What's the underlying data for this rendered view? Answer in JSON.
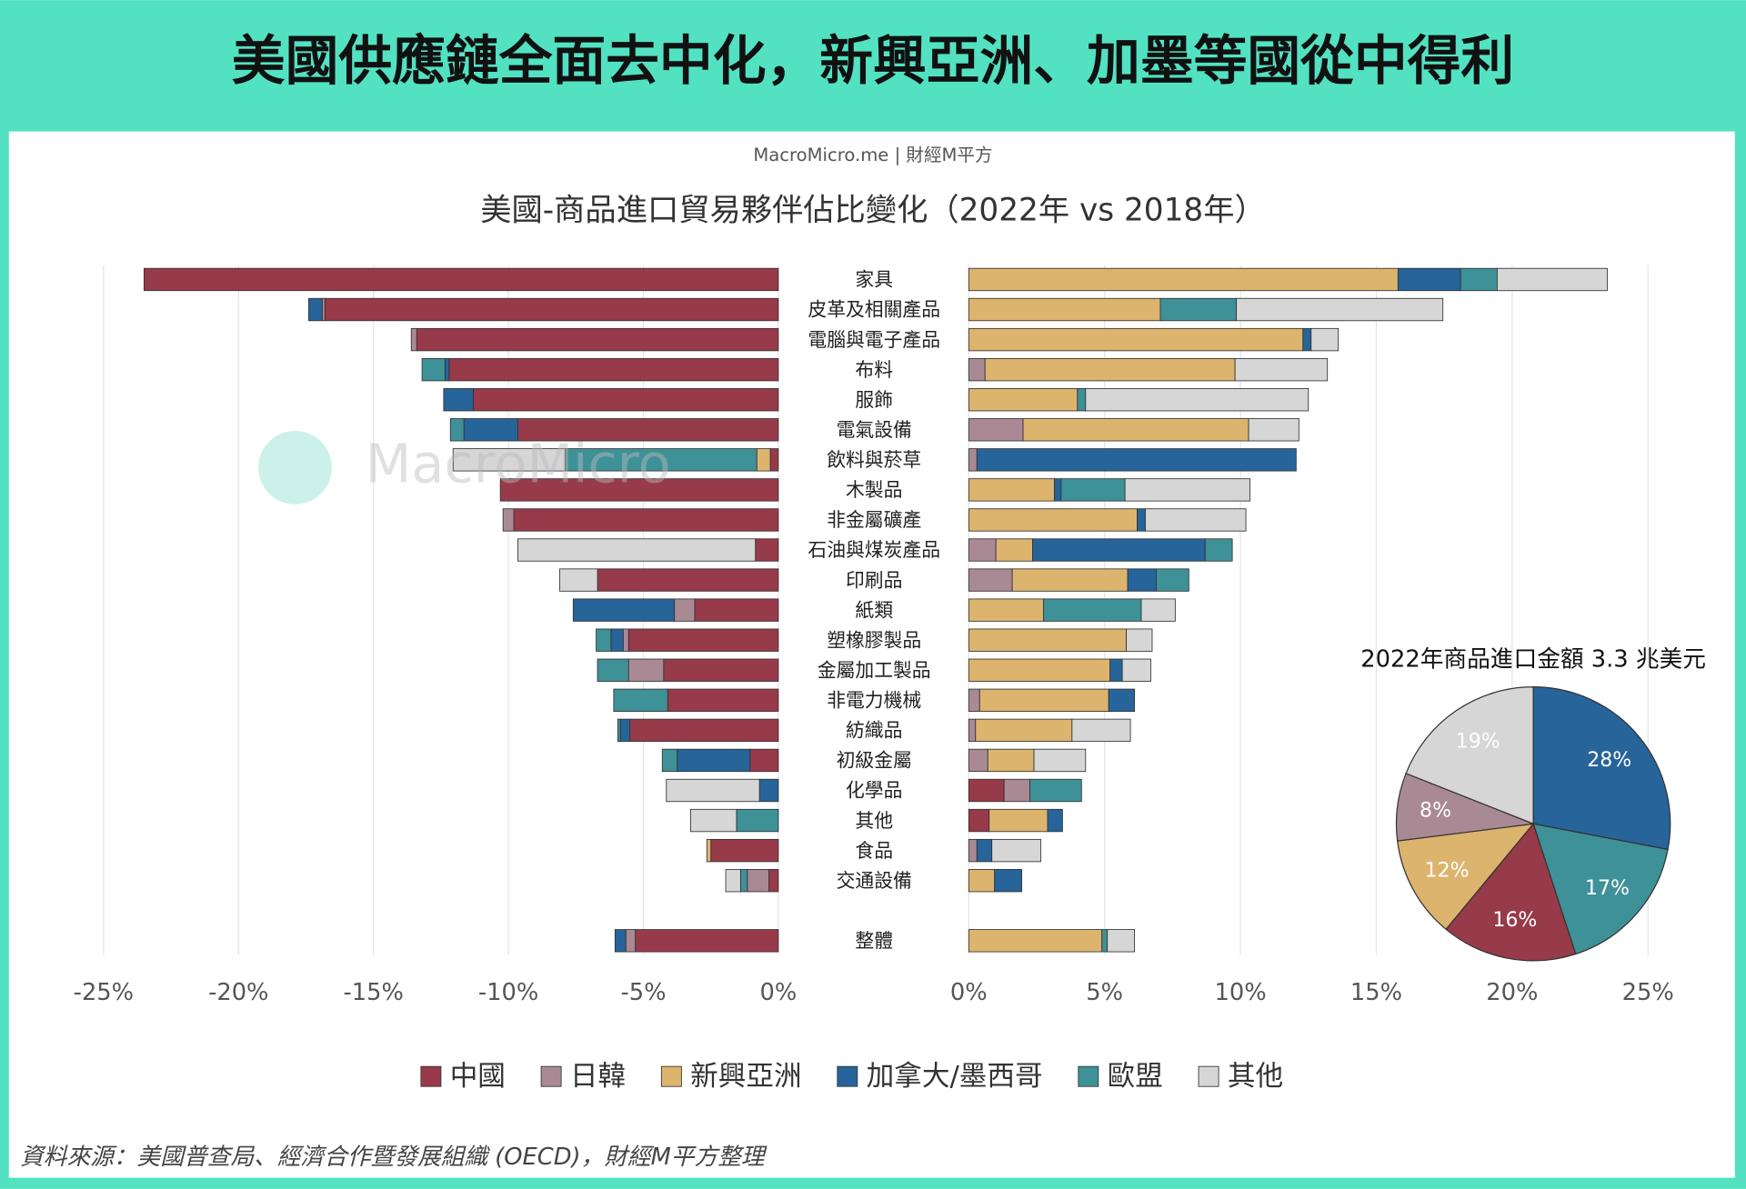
{
  "header": {
    "title": "美國供應鏈全面去中化，新興亞洲、加墨等國從中得利"
  },
  "chart_data": [
    {
      "type": "butterfly",
      "subtitle": "MacroMicro.me | 財經M平方",
      "title": "美國-商品進口貿易夥伴佔比變化（2022年 vs 2018年）",
      "watermark": "MacroMicro",
      "categories": [
        "家具",
        "皮革及相關產品",
        "電腦與電子產品",
        "布料",
        "服飾",
        "電氣設備",
        "飲料與菸草",
        "木製品",
        "非金屬礦產",
        "石油與煤炭產品",
        "印刷品",
        "紙類",
        "塑橡膠製品",
        "金屬加工製品",
        "非電力機械",
        "紡織品",
        "初級金屬",
        "化學品",
        "其他",
        "食品",
        "交通設備",
        "整體"
      ],
      "series": [
        {
          "name": "中國",
          "color": "#973a4a",
          "values": [
            -23.5,
            -16.8,
            -13.4,
            -12.2,
            -11.3,
            -9.65,
            -0.3,
            -10.3,
            -9.8,
            -0.85,
            -6.7,
            -3.1,
            -5.55,
            -4.25,
            -4.1,
            -5.5,
            -1.05,
            1.3,
            0.75,
            -2.5,
            -0.35,
            -5.3
          ]
        },
        {
          "name": "日韓",
          "color": "#a98a94",
          "values": [
            0,
            -0.1,
            -0.2,
            0.6,
            0,
            2.0,
            0.3,
            0,
            -0.4,
            1.0,
            1.6,
            -0.75,
            -0.2,
            -1.3,
            0.4,
            0.25,
            0.7,
            0.95,
            0,
            0.3,
            -0.8,
            -0.35
          ]
        },
        {
          "name": "新興亞洲",
          "color": "#dcb46e",
          "values": [
            15.8,
            7.05,
            12.3,
            9.2,
            4.0,
            8.3,
            -0.5,
            3.15,
            6.2,
            1.35,
            4.25,
            2.75,
            5.8,
            5.2,
            4.75,
            3.55,
            1.7,
            0,
            2.15,
            -0.15,
            0.95,
            4.9
          ]
        },
        {
          "name": "加拿大/墨西哥",
          "color": "#26649a",
          "values": [
            2.3,
            -0.5,
            0.3,
            -0.15,
            -1.1,
            -2.0,
            11.75,
            0.25,
            0.3,
            6.35,
            1.05,
            -3.75,
            -0.45,
            0.45,
            0.95,
            -0.35,
            -2.7,
            -0.7,
            0.55,
            0.55,
            1.0,
            -0.4
          ]
        },
        {
          "name": "歐盟",
          "color": "#3f9198",
          "values": [
            1.35,
            2.8,
            0,
            -0.85,
            0.3,
            -0.5,
            -7.1,
            2.35,
            0,
            1.0,
            1.2,
            3.6,
            -0.55,
            -1.15,
            -2.0,
            -0.1,
            -0.55,
            1.9,
            -1.55,
            0,
            -0.25,
            0.2
          ]
        },
        {
          "name": "其他",
          "color": "#d6d6d6",
          "values": [
            4.05,
            7.6,
            1.0,
            3.4,
            8.2,
            1.85,
            -4.15,
            4.6,
            3.7,
            -8.8,
            -1.4,
            1.25,
            0.95,
            1.05,
            0,
            2.15,
            1.9,
            -3.45,
            -1.7,
            1.8,
            -0.55,
            1.0
          ]
        }
      ],
      "xlim": [
        -25,
        0
      ],
      "xticks": [
        {
          "value": -25,
          "label": "-25%"
        },
        {
          "value": -20,
          "label": "-20%"
        },
        {
          "value": -15,
          "label": "-15%"
        },
        {
          "value": -10,
          "label": "-10%"
        },
        {
          "value": -5,
          "label": "-5%"
        },
        {
          "value": 0,
          "label": "0%"
        }
      ],
      "x2lim": [
        0,
        25
      ],
      "x2ticks": [
        {
          "value": 0,
          "label": "0%"
        },
        {
          "value": 5,
          "label": "5%"
        },
        {
          "value": 10,
          "label": "10%"
        },
        {
          "value": 15,
          "label": "15%"
        },
        {
          "value": 20,
          "label": "20%"
        },
        {
          "value": 25,
          "label": "25%"
        }
      ],
      "grid": true,
      "legend": "bottom"
    },
    {
      "type": "pie",
      "title": "2022年商品進口金額 3.3 兆美元",
      "values": [
        28,
        17,
        16,
        12,
        8,
        19
      ],
      "value_labels": [
        "28%",
        "17%",
        "16%",
        "12%",
        "8%",
        "19%"
      ],
      "colors": [
        "#26649a",
        "#3f9198",
        "#973a4a",
        "#dcb46e",
        "#a98a94",
        "#d6d6d6"
      ]
    }
  ],
  "footer": {
    "source": "資料來源：美國普查局、經濟合作暨發展組織 (OECD)，財經M平方整理"
  }
}
